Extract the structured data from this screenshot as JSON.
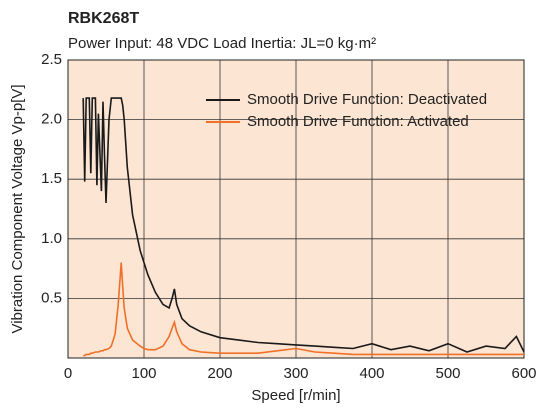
{
  "chart_data": {
    "type": "line",
    "title": "RBK268T",
    "subtitle": "Power Input: 48 VDC   Load Inertia: JL=0 kg·m²",
    "xlabel": "Speed [r/min]",
    "ylabel": "Vibration Component Voltage Vp-p[V]",
    "x": [
      20,
      22,
      24,
      28,
      30,
      32,
      36,
      38,
      40,
      44,
      46,
      48,
      50,
      54,
      57,
      62,
      66,
      70,
      72,
      74,
      78,
      85,
      95,
      100,
      105,
      115,
      125,
      133,
      137,
      140,
      143,
      150,
      160,
      175,
      200,
      225,
      250,
      275,
      300,
      325,
      350,
      375,
      400,
      425,
      450,
      475,
      500,
      525,
      550,
      575,
      590,
      600
    ],
    "series": [
      {
        "name": "Smooth Drive Function: Deactivated",
        "color": "#1a1a1a",
        "values": [
          2.18,
          1.48,
          2.18,
          2.18,
          1.55,
          2.18,
          2.18,
          1.45,
          2.05,
          1.4,
          2.15,
          1.7,
          1.3,
          2.0,
          2.18,
          2.18,
          2.18,
          2.18,
          2.12,
          2.0,
          1.6,
          1.2,
          0.9,
          0.8,
          0.7,
          0.55,
          0.45,
          0.42,
          0.5,
          0.58,
          0.45,
          0.33,
          0.27,
          0.22,
          0.17,
          0.15,
          0.13,
          0.12,
          0.11,
          0.1,
          0.09,
          0.08,
          0.12,
          0.07,
          0.1,
          0.06,
          0.12,
          0.05,
          0.1,
          0.08,
          0.18,
          0.05
        ]
      },
      {
        "name": "Smooth Drive Function: Activated",
        "color": "#f07028",
        "values": [
          0.02,
          0.02,
          0.03,
          0.03,
          0.04,
          0.04,
          0.05,
          0.05,
          0.05,
          0.06,
          0.06,
          0.07,
          0.07,
          0.08,
          0.1,
          0.2,
          0.45,
          0.8,
          0.6,
          0.42,
          0.25,
          0.15,
          0.1,
          0.08,
          0.07,
          0.07,
          0.1,
          0.18,
          0.25,
          0.3,
          0.22,
          0.12,
          0.07,
          0.05,
          0.04,
          0.04,
          0.04,
          0.06,
          0.08,
          0.05,
          0.04,
          0.03,
          0.03,
          0.03,
          0.03,
          0.03,
          0.03,
          0.03,
          0.03,
          0.03,
          0.03,
          0.03
        ]
      }
    ],
    "xlim": [
      0,
      600
    ],
    "xticks": [
      0,
      100,
      200,
      300,
      400,
      500,
      600
    ],
    "ylim": [
      0,
      2.5
    ],
    "yticks": [
      0.5,
      {
        "value": 1,
        "label": "1.0"
      },
      1.5,
      {
        "value": 2,
        "label": "2.0"
      },
      2.5
    ],
    "grid": true,
    "legend": "upper right",
    "plot_background": "#fce5d3"
  }
}
